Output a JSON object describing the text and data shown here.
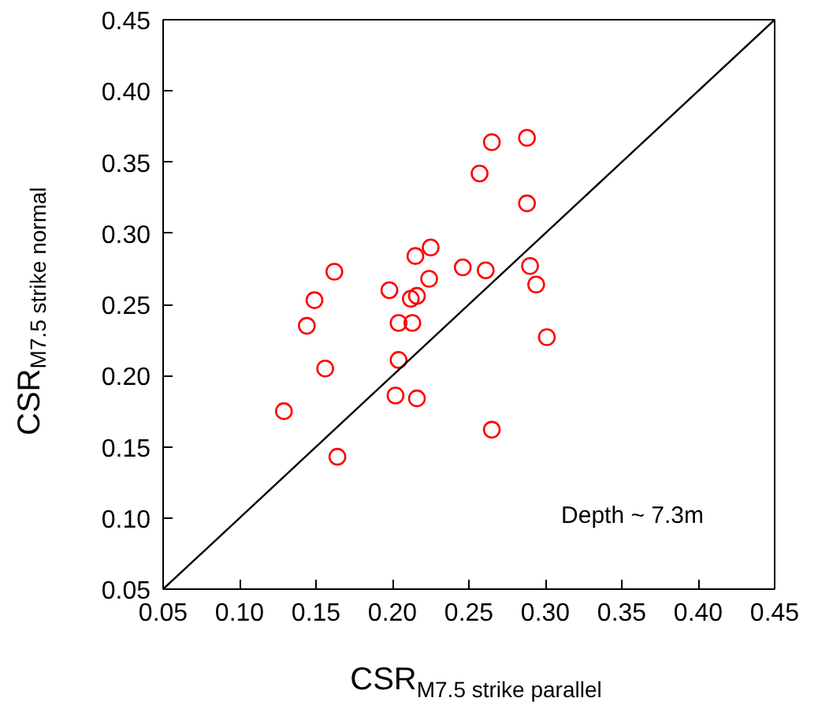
{
  "chart_data": {
    "type": "scatter",
    "xlabel": "CSR$_{M7.5 strike parallel}$",
    "ylabel": "CSR$_{M7.5 strike normal}$",
    "xlim": [
      0.05,
      0.45
    ],
    "ylim": [
      0.05,
      0.45
    ],
    "xticks": [
      {
        "value": 0.05,
        "label": "0.05"
      },
      {
        "value": 0.1,
        "label": "0.10"
      },
      {
        "value": 0.15,
        "label": "0.15"
      },
      {
        "value": 0.2,
        "label": "0.20"
      },
      {
        "value": 0.25,
        "label": "0.25"
      },
      {
        "value": 0.3,
        "label": "0.30"
      },
      {
        "value": 0.35,
        "label": "0.35"
      },
      {
        "value": 0.4,
        "label": "0.40"
      },
      {
        "value": 0.45,
        "label": "0.45"
      }
    ],
    "yticks": [
      {
        "value": 0.05,
        "label": "0.05"
      },
      {
        "value": 0.1,
        "label": "0.10"
      },
      {
        "value": 0.15,
        "label": "0.15"
      },
      {
        "value": 0.2,
        "label": "0.20"
      },
      {
        "value": 0.25,
        "label": "0.25"
      },
      {
        "value": 0.3,
        "label": "0.30"
      },
      {
        "value": 0.35,
        "label": "0.35"
      },
      {
        "value": 0.4,
        "label": "0.40"
      },
      {
        "value": 0.45,
        "label": "0.45"
      }
    ],
    "grid": false,
    "marker": "circle",
    "annotations": [
      "Depth ~ 7.3m"
    ],
    "series": [
      {
        "color": "#ff0000",
        "x": [
          0.129,
          0.164,
          0.144,
          0.149,
          0.156,
          0.162,
          0.198,
          0.204,
          0.213,
          0.204,
          0.202,
          0.216,
          0.212,
          0.216,
          0.224,
          0.215,
          0.225,
          0.246,
          0.261,
          0.29,
          0.294,
          0.301,
          0.265,
          0.257,
          0.265,
          0.288,
          0.288
        ],
        "values": [
          0.175,
          0.143,
          0.235,
          0.253,
          0.205,
          0.273,
          0.26,
          0.237,
          0.237,
          0.211,
          0.186,
          0.184,
          0.254,
          0.256,
          0.268,
          0.284,
          0.29,
          0.276,
          0.274,
          0.277,
          0.264,
          0.227,
          0.162,
          0.342,
          0.364,
          0.367,
          0.321
        ]
      },
      {
        "type": "line",
        "color": "#000000",
        "marker": "none",
        "x": [
          0.05,
          0.45
        ],
        "values": [
          0.05,
          0.45
        ]
      }
    ]
  }
}
